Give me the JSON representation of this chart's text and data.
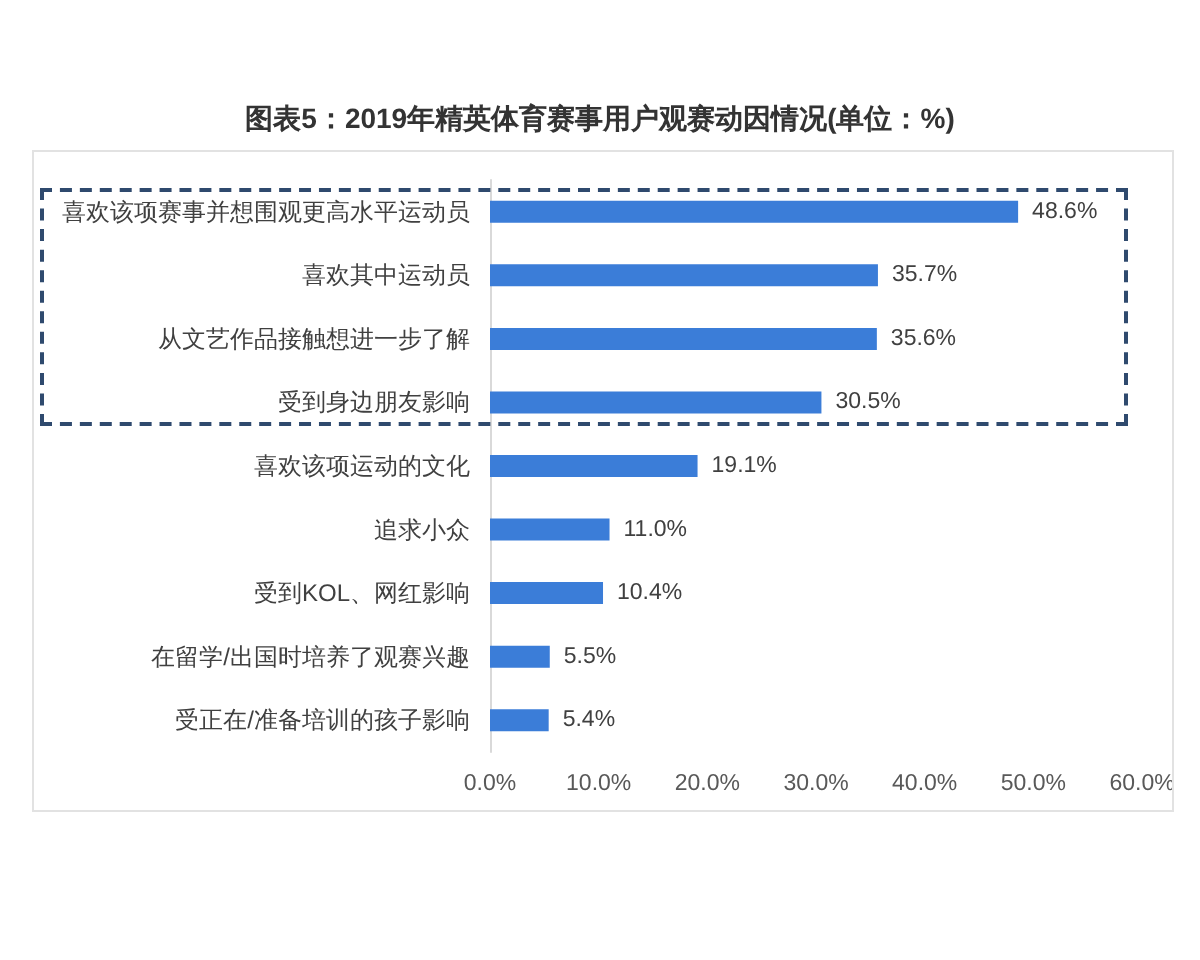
{
  "chart_data": {
    "type": "bar",
    "orientation": "horizontal",
    "title": "图表5：2019年精英体育赛事用户观赛动因情况(单位：%)",
    "categories": [
      "喜欢该项赛事并想围观更高水平运动员",
      "喜欢其中运动员",
      "从文艺作品接触想进一步了解",
      "受到身边朋友影响",
      "喜欢该项运动的文化",
      "追求小众",
      "受到KOL、网红影响",
      "在留学/出国时培养了观赛兴趣",
      "受正在/准备培训的孩子影响"
    ],
    "values": [
      48.6,
      35.7,
      35.6,
      30.5,
      19.1,
      11.0,
      10.4,
      5.5,
      5.4
    ],
    "value_labels": [
      "48.6%",
      "35.7%",
      "35.6%",
      "30.5%",
      "19.1%",
      "11.0%",
      "10.4%",
      "5.5%",
      "5.4%"
    ],
    "color": "#3b7dd8",
    "xlim": [
      0,
      60
    ],
    "xticks": [
      {
        "value": 0,
        "label": "0.0%"
      },
      {
        "value": 10,
        "label": "10.0%"
      },
      {
        "value": 20,
        "label": "20.0%"
      },
      {
        "value": 30,
        "label": "30.0%"
      },
      {
        "value": 40,
        "label": "40.0%"
      },
      {
        "value": 50,
        "label": "50.0%"
      },
      {
        "value": 60,
        "label": "60.0%"
      }
    ]
  }
}
